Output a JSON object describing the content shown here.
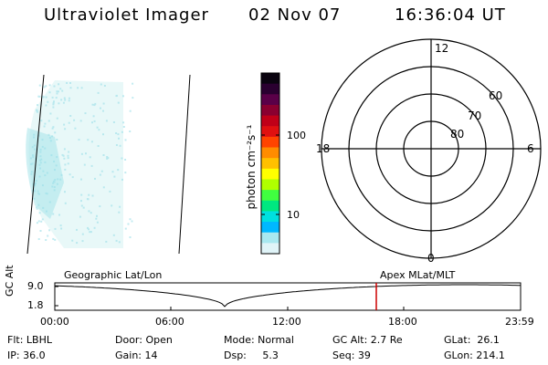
{
  "header": {
    "instrument": "Ultraviolet Imager",
    "date": "02 Nov 07",
    "time": "16:36:04 UT"
  },
  "colorbar": {
    "unit_label": "photon cm⁻²s⁻¹",
    "ticks": [
      "100",
      "10"
    ],
    "colors": [
      "#0a0410",
      "#2a0030",
      "#5a0048",
      "#8a0030",
      "#c00018",
      "#e01010",
      "#ff4400",
      "#ff8c00",
      "#ffc000",
      "#ffff00",
      "#b0ff00",
      "#40ff40",
      "#00e880",
      "#00e0e0",
      "#00b8ff",
      "#a8e8f0",
      "#e0f4f8"
    ]
  },
  "polar_plot": {
    "latitude_labels": [
      "80",
      "70",
      "60"
    ],
    "mlt_labels": {
      "top": "12",
      "bottom": "0",
      "left": "18",
      "right": "6"
    }
  },
  "timeline": {
    "left_title": "Geographic Lat/Lon",
    "right_title": "Apex MLat/MLT",
    "y_label": "GC Alt",
    "y_ticks": [
      "9.0",
      "1.8"
    ],
    "x_ticks": [
      "00:00",
      "06:00",
      "12:00",
      "18:00",
      "23:59"
    ],
    "current_marker_color": "#cc0000"
  },
  "status": {
    "flt": "Flt: LBHL",
    "ip": "IP: 36.0",
    "door": "Door: Open",
    "gain": "Gain: 14",
    "mode": "Mode: Normal",
    "dsp": "Dsp:     5.3",
    "gc_alt": "GC Alt: 2.7 Re",
    "seq": "Seq: 39",
    "glat": "GLat:  26.1",
    "glon": "GLon: 214.1"
  }
}
